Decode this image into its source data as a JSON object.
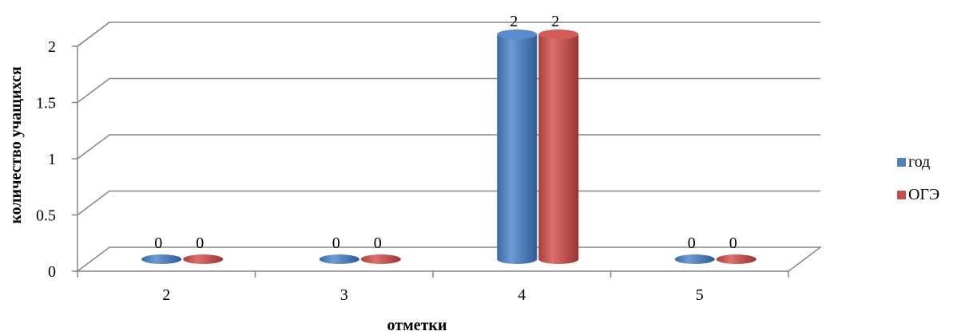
{
  "chart_data": {
    "type": "bar",
    "title": "",
    "xlabel": "отметки",
    "ylabel": "количество учащихся",
    "categories": [
      "2",
      "3",
      "4",
      "5"
    ],
    "series": [
      {
        "name": "год",
        "values": [
          0,
          0,
          2,
          0
        ],
        "labels": [
          "0",
          "0",
          "2",
          "0"
        ],
        "color": "#4f81bd"
      },
      {
        "name": "ОГЭ",
        "values": [
          0,
          0,
          2,
          0
        ],
        "labels": [
          "0",
          "0",
          "2",
          "0"
        ],
        "color": "#c0504d"
      }
    ],
    "ylim": [
      0,
      2
    ],
    "yticks": [
      "0",
      "0.5",
      "1",
      "1.5",
      "2"
    ],
    "grid": true,
    "legend_position": "right",
    "style": "3d-cylinder"
  }
}
